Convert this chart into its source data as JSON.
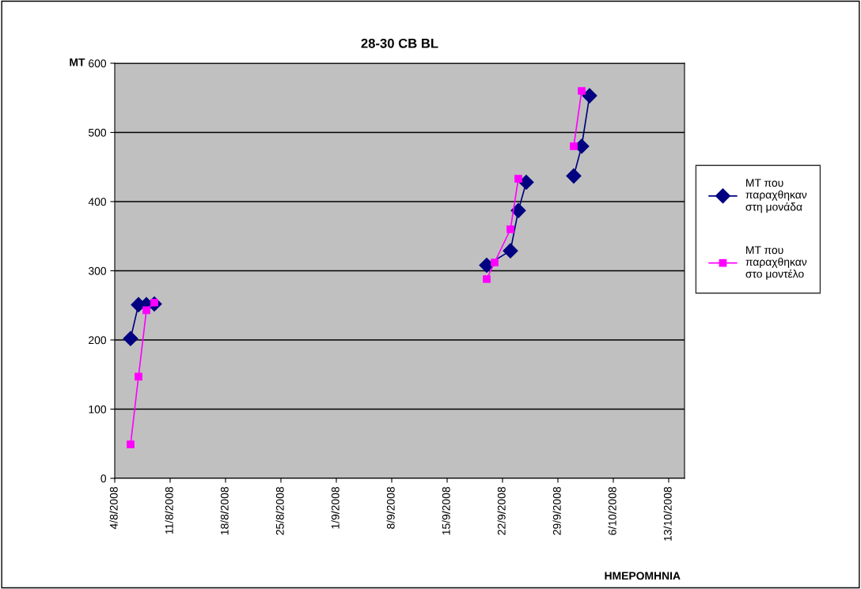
{
  "chart_data": {
    "type": "line",
    "title": "28-30 CB BL",
    "xlabel": "ΗΜΕΡΟΜΗΝΙΑ",
    "ylabel": "MT",
    "series": [
      {
        "name": "MT που παραχθηκαν στη μονάδα",
        "color": "#000080",
        "marker": "diamond",
        "x": [
          "2008-08-06",
          "2008-08-07",
          "2008-08-08",
          "2008-08-09",
          "2008-09-01",
          "2008-09-20",
          "2008-09-23",
          "2008-09-24",
          "2008-09-25",
          "2008-09-28",
          "2008-10-01",
          "2008-10-02",
          "2008-10-03"
        ],
        "values": [
          202,
          251,
          251,
          252,
          null,
          308,
          329,
          387,
          428,
          null,
          437,
          480,
          553
        ]
      },
      {
        "name": "MT που παραχθηκαν στο μοντέλο",
        "color": "#ff00ff",
        "marker": "square",
        "x": [
          "2008-08-06",
          "2008-08-07",
          "2008-08-08",
          "2008-08-09",
          "2008-09-01",
          "2008-09-20",
          "2008-09-21",
          "2008-09-23",
          "2008-09-24",
          "2008-09-28",
          "2008-10-01",
          "2008-10-02"
        ],
        "values": [
          49,
          147,
          243,
          254,
          null,
          288,
          312,
          360,
          433,
          null,
          480,
          560
        ]
      }
    ],
    "xlim": [
      "2008-08-04",
      "2008-10-15"
    ],
    "xticks": [
      {
        "value": "2008-08-04",
        "label": "4/8/2008"
      },
      {
        "value": "2008-08-11",
        "label": "11/8/2008"
      },
      {
        "value": "2008-08-18",
        "label": "18/8/2008"
      },
      {
        "value": "2008-08-25",
        "label": "25/8/2008"
      },
      {
        "value": "2008-09-01",
        "label": "1/9/2008"
      },
      {
        "value": "2008-09-08",
        "label": "8/9/2008"
      },
      {
        "value": "2008-09-15",
        "label": "15/9/2008"
      },
      {
        "value": "2008-09-22",
        "label": "22/9/2008"
      },
      {
        "value": "2008-09-29",
        "label": "29/9/2008"
      },
      {
        "value": "2008-10-06",
        "label": "6/10/2008"
      },
      {
        "value": "2008-10-13",
        "label": "13/10/2008"
      }
    ],
    "ylim": [
      0,
      600
    ],
    "yticks": [
      0,
      100,
      200,
      300,
      400,
      500,
      600
    ],
    "grid": "y",
    "legend": "right",
    "line_style": "solid"
  }
}
